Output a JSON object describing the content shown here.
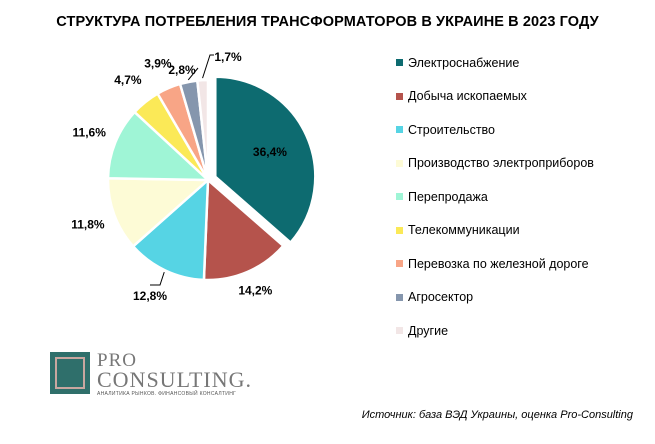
{
  "chart_data": {
    "type": "pie",
    "title": "СТРУКТУРА ПОТРЕБЛЕНИЯ ТРАНСФОРМАТОРОВ В УКРАИНЕ В 2023 ГОДУ",
    "labels": [
      "Электроснабжение",
      "Добыча ископаемых",
      "Строительство",
      "Производство электроприборов",
      "Перепродажа",
      "Телекоммуникации",
      "Перевозка по железной дороге",
      "Агросектор",
      "Другие"
    ],
    "values": [
      36.4,
      14.2,
      12.8,
      11.8,
      11.6,
      4.7,
      3.9,
      2.8,
      1.7
    ],
    "value_labels": [
      "36,4%",
      "14,2%",
      "12,8%",
      "11,8%",
      "11,6%",
      "4,7%",
      "3,9%",
      "2,8%",
      "1,7%"
    ],
    "colors": [
      "#0d6b70",
      "#b5534c",
      "#56d4e4",
      "#fdfbd6",
      "#9ff5d6",
      "#fbe957",
      "#f8a586",
      "#8596ad",
      "#f2e6e6"
    ],
    "exploded_first_slice": true,
    "legend_position": "right"
  },
  "logo": {
    "line1": "PRO",
    "line2": "CONSULTING.",
    "tagline": "АНАЛИТИКА РЫНКОВ. ФИНАНСОВЫЙ КОНСАЛТИНГ"
  },
  "source": "Источник: база ВЭД Украины, оценка Pro-Consulting"
}
